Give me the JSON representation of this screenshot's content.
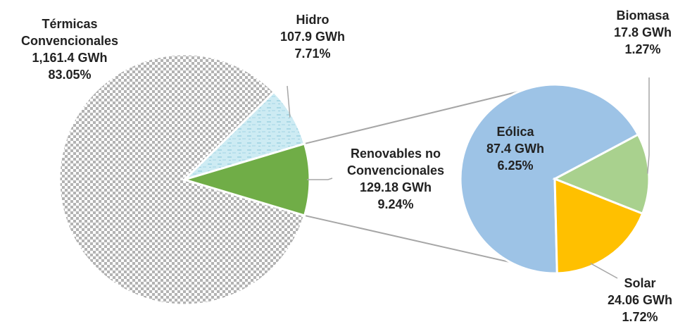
{
  "chart_data": {
    "type": "pie",
    "subtype": "pie-of-pie",
    "main_pie": {
      "slices": [
        {
          "key": "termicas",
          "label_lines": [
            "Térmicas",
            "Convencionales",
            "1,161.4 GWh",
            "83.05%"
          ],
          "value": 1161.4,
          "unit": "GWh",
          "percent": 83.05,
          "fill": "checkered gray",
          "color": "#b3b3b3"
        },
        {
          "key": "hidro",
          "label_lines": [
            "Hidro",
            "107.9 GWh",
            "7.71%"
          ],
          "value": 107.9,
          "unit": "GWh",
          "percent": 7.71,
          "fill": "textured light blue",
          "color": "#bfe3ee"
        },
        {
          "key": "renovables",
          "label_lines": [
            "Renovables no",
            "Convencionales",
            "129.18 GWh",
            "9.24%"
          ],
          "value": 129.18,
          "unit": "GWh",
          "percent": 9.24,
          "fill": "solid",
          "color": "#70ad47"
        }
      ]
    },
    "secondary_pie": {
      "breakdown_of": "renovables",
      "slices": [
        {
          "key": "eolica",
          "label_lines": [
            "Eólica",
            "87.4 GWh",
            "6.25%"
          ],
          "value": 87.4,
          "unit": "GWh",
          "percent": 6.25,
          "color": "#9dc3e6"
        },
        {
          "key": "biomasa",
          "label_lines": [
            "Biomasa",
            "17.8 GWh",
            "1.27%"
          ],
          "value": 17.8,
          "unit": "GWh",
          "percent": 1.27,
          "color": "#a9d18e"
        },
        {
          "key": "solar",
          "label_lines": [
            "Solar",
            "24.06 GWh",
            "1.72%"
          ],
          "value": 24.06,
          "unit": "GWh",
          "percent": 1.72,
          "color": "#ffc000"
        }
      ]
    },
    "legend": "none",
    "connector_color": "#a6a6a6"
  }
}
